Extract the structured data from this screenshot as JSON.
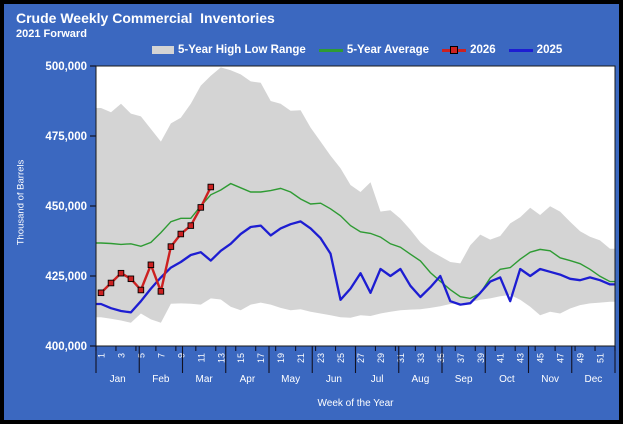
{
  "colors": {
    "background": "#3B68C0",
    "outer_border": "#000000",
    "plot_background": "#FFFFFF",
    "plot_border": "#1A1A1A",
    "tick": "#111122",
    "text": "#FFFFFF",
    "band_gray": "#D4D4D4",
    "avg_green": "#2E9B33",
    "red_2026": "#CC2121",
    "blue_2025": "#1D1DD2"
  },
  "chart_data": {
    "type": "line",
    "title": "Crude Weekly Commercial  Inventories",
    "subtitle": "2021 Forward",
    "xlabel": "Week of the Year",
    "ylabel": "Thousand of Barrels",
    "ylim": [
      400000,
      500000
    ],
    "ytick_step": 25000,
    "ytick_labels": [
      "400,000",
      "425,000",
      "450,000",
      "475,000",
      "500,000"
    ],
    "grid": false,
    "legend_position": "top",
    "weeks": 52,
    "weeks_labeled": [
      1,
      3,
      5,
      7,
      9,
      11,
      13,
      15,
      17,
      19,
      21,
      23,
      25,
      27,
      29,
      31,
      33,
      35,
      37,
      39,
      41,
      43,
      45,
      47,
      49,
      51
    ],
    "months": [
      "Jan",
      "Feb",
      "Mar",
      "Apr",
      "May",
      "Jun",
      "Jul",
      "Aug",
      "Sep",
      "Oct",
      "Nov",
      "Dec"
    ],
    "series": [
      {
        "name": "5-Year High Low Range",
        "type": "band",
        "color": "#D4D4D4",
        "high": [
          485000,
          483500,
          486500,
          483000,
          482000,
          477500,
          473000,
          479500,
          481500,
          486500,
          493000,
          496500,
          499500,
          498500,
          497000,
          494500,
          494000,
          487500,
          486500,
          484000,
          484200,
          478000,
          473000,
          468000,
          463500,
          457500,
          455000,
          458500,
          448000,
          448500,
          445500,
          441500,
          437000,
          434000,
          432000,
          430000,
          429500,
          436000,
          439800,
          438000,
          439300,
          443800,
          446000,
          449400,
          446800,
          449900,
          448000,
          444400,
          441000,
          439000,
          437700,
          434700
        ],
        "low": [
          410300,
          409700,
          409100,
          408300,
          411600,
          409500,
          408300,
          415100,
          415200,
          415100,
          414800,
          417000,
          416600,
          414000,
          412800,
          414800,
          415500,
          414800,
          413600,
          412800,
          413100,
          412200,
          411600,
          411000,
          410300,
          410100,
          411000,
          410700,
          411600,
          412200,
          412800,
          413000,
          413100,
          413600,
          414200,
          415000,
          415200,
          415600,
          416500,
          417000,
          417800,
          418200,
          416500,
          414000,
          411000,
          412200,
          411600,
          413400,
          414600,
          415200,
          415500,
          415800
        ]
      },
      {
        "name": "5-Year Average",
        "type": "line",
        "color": "#2E9B33",
        "values": [
          436800,
          436600,
          436300,
          436500,
          435600,
          437000,
          440500,
          444400,
          445600,
          445600,
          450000,
          454000,
          455700,
          458000,
          456500,
          455000,
          455000,
          455500,
          456300,
          455000,
          452500,
          450700,
          451000,
          449000,
          446500,
          443000,
          440800,
          440200,
          438900,
          436500,
          435300,
          432800,
          430400,
          426200,
          423100,
          420100,
          417600,
          417000,
          418900,
          424300,
          427400,
          428000,
          431000,
          433500,
          434500,
          434000,
          431500,
          430500,
          429400,
          427400,
          424900,
          423000
        ]
      },
      {
        "name": "2026",
        "type": "line",
        "marker": "square",
        "color": "#CC2121",
        "values": [
          419000,
          422500,
          426000,
          424000,
          420000,
          429000,
          419500,
          435500,
          440000,
          443000,
          449500,
          456800
        ]
      },
      {
        "name": "2025",
        "type": "line",
        "color": "#1D1DD2",
        "values": [
          415000,
          413500,
          412500,
          412000,
          416000,
          420500,
          424500,
          428000,
          430000,
          432500,
          433500,
          430500,
          434000,
          436500,
          440000,
          442500,
          443000,
          439500,
          442000,
          443500,
          444500,
          442000,
          438500,
          433000,
          416500,
          420500,
          426000,
          419000,
          427500,
          425000,
          427500,
          421500,
          417500,
          421000,
          425000,
          416000,
          414800,
          415300,
          419000,
          423000,
          424500,
          416000,
          427500,
          425000,
          427500,
          426500,
          425500,
          424000,
          423500,
          424500,
          423500,
          422000
        ]
      }
    ]
  }
}
